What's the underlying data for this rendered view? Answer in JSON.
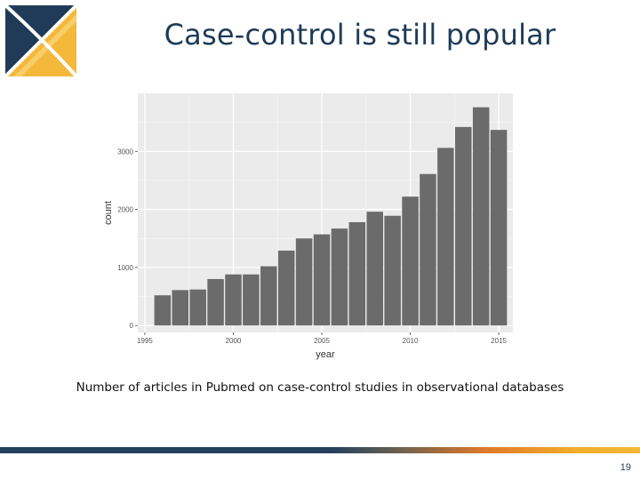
{
  "slide": {
    "title": "Case-control is still popular",
    "caption": "Number of articles in Pubmed on case-control studies in observational databases",
    "page_number": "19"
  },
  "logo": {
    "icon": "x-logo-icon",
    "colors": [
      "#1f3b57",
      "#f4b83a",
      "#ffffff"
    ]
  },
  "colors": {
    "bar": "#6b6b6b",
    "panel": "#ebebeb",
    "grid": "#ffffff",
    "title": "#1f3b57"
  },
  "chart_data": {
    "type": "bar",
    "title": "",
    "xlabel": "year",
    "ylabel": "count",
    "x": [
      1996,
      1997,
      1998,
      1999,
      2000,
      2001,
      2002,
      2003,
      2004,
      2005,
      2006,
      2007,
      2008,
      2009,
      2010,
      2011,
      2012,
      2013,
      2014,
      2015
    ],
    "values": [
      520,
      610,
      620,
      800,
      880,
      880,
      1020,
      1290,
      1500,
      1570,
      1670,
      1780,
      1960,
      1890,
      2220,
      2610,
      3060,
      3420,
      3760,
      3370
    ],
    "xlim": [
      1994.6,
      2015.8
    ],
    "ylim": [
      -120,
      4000
    ],
    "x_ticks": [
      1995,
      2000,
      2005,
      2010,
      2015
    ],
    "x_tick_labels": [
      "1995",
      "2000",
      "2005",
      "2010",
      "2015"
    ],
    "y_ticks": [
      0,
      1000,
      2000,
      3000
    ],
    "y_tick_labels": [
      "0",
      "1000",
      "2000",
      "3000"
    ],
    "grid": true,
    "legend": "none"
  }
}
